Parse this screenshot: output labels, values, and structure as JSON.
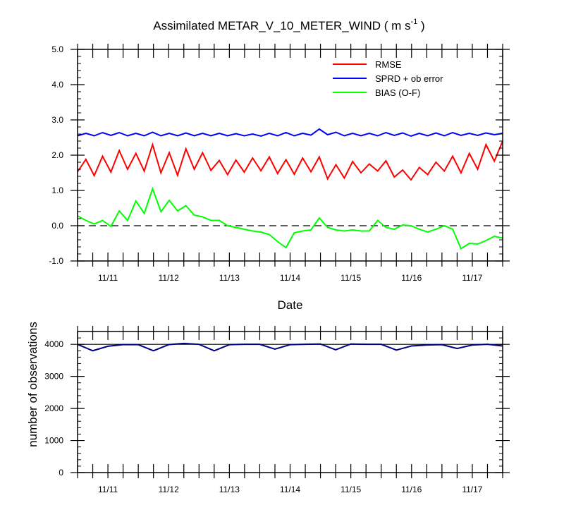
{
  "chart_data": [
    {
      "type": "line",
      "title": "Assimilated METAR_V_10_METER_WIND ( m s",
      "title_superscript": "-1",
      "title_end": " )",
      "xlabel": "Date",
      "ylabel": "",
      "ylim": [
        -1.0,
        5.0
      ],
      "y_ticks": [
        "-1.0",
        "0.0",
        "1.0",
        "2.0",
        "3.0",
        "4.0",
        "5.0"
      ],
      "xlim": [
        0,
        28
      ],
      "x_ticks": [
        {
          "pos": 2,
          "label": "11/11"
        },
        {
          "pos": 6,
          "label": "11/12"
        },
        {
          "pos": 10,
          "label": "11/13"
        },
        {
          "pos": 14,
          "label": "11/14"
        },
        {
          "pos": 18,
          "label": "11/15"
        },
        {
          "pos": 22,
          "label": "11/16"
        },
        {
          "pos": 26,
          "label": "11/17"
        }
      ],
      "zero_line": true,
      "legend_position": "top-right",
      "series": [
        {
          "name": "RMSE",
          "color": "#ff0000",
          "values": [
            1.53,
            1.88,
            1.42,
            1.97,
            1.52,
            2.13,
            1.6,
            2.05,
            1.55,
            2.3,
            1.5,
            2.07,
            1.43,
            2.18,
            1.6,
            2.07,
            1.57,
            1.85,
            1.45,
            1.86,
            1.52,
            1.92,
            1.56,
            1.95,
            1.48,
            1.87,
            1.46,
            1.92,
            1.53,
            1.95,
            1.33,
            1.73,
            1.35,
            1.82,
            1.5,
            1.75,
            1.55,
            1.84,
            1.38,
            1.58,
            1.3,
            1.65,
            1.45,
            1.8,
            1.55,
            1.97,
            1.5,
            2.05,
            1.6,
            2.3,
            1.83,
            2.4
          ]
        },
        {
          "name": "SPRD + ob error",
          "color": "#0000ff",
          "values": [
            2.55,
            2.62,
            2.55,
            2.64,
            2.56,
            2.64,
            2.55,
            2.62,
            2.55,
            2.65,
            2.55,
            2.62,
            2.55,
            2.63,
            2.55,
            2.62,
            2.55,
            2.62,
            2.55,
            2.61,
            2.55,
            2.6,
            2.54,
            2.62,
            2.55,
            2.64,
            2.55,
            2.62,
            2.57,
            2.74,
            2.58,
            2.65,
            2.55,
            2.62,
            2.55,
            2.62,
            2.55,
            2.64,
            2.56,
            2.63,
            2.54,
            2.62,
            2.55,
            2.63,
            2.55,
            2.64,
            2.56,
            2.62,
            2.56,
            2.63,
            2.58,
            2.62
          ]
        },
        {
          "name": "BIAS (O-F)",
          "color": "#00ff00",
          "values": [
            0.28,
            0.15,
            0.05,
            0.15,
            -0.02,
            0.42,
            0.15,
            0.7,
            0.35,
            1.05,
            0.4,
            0.72,
            0.42,
            0.57,
            0.3,
            0.25,
            0.15,
            0.15,
            0.0,
            -0.05,
            -0.1,
            -0.15,
            -0.18,
            -0.25,
            -0.45,
            -0.62,
            -0.2,
            -0.15,
            -0.12,
            0.22,
            -0.05,
            -0.12,
            -0.15,
            -0.12,
            -0.15,
            -0.15,
            0.15,
            -0.05,
            -0.1,
            0.02,
            0.0,
            -0.1,
            -0.18,
            -0.1,
            0.0,
            -0.1,
            -0.65,
            -0.5,
            -0.52,
            -0.42,
            -0.3,
            -0.35
          ]
        }
      ]
    },
    {
      "type": "line",
      "title": "",
      "xlabel": "",
      "ylabel": "number of observations",
      "ylim": [
        0,
        4400
      ],
      "y_ticks": [
        "0",
        "1000",
        "2000",
        "3000",
        "4000"
      ],
      "xlim": [
        0,
        28
      ],
      "x_ticks": [
        {
          "pos": 2,
          "label": "11/11"
        },
        {
          "pos": 6,
          "label": "11/12"
        },
        {
          "pos": 10,
          "label": "11/13"
        },
        {
          "pos": 14,
          "label": "11/14"
        },
        {
          "pos": 18,
          "label": "11/15"
        },
        {
          "pos": 22,
          "label": "11/16"
        },
        {
          "pos": 26,
          "label": "11/17"
        }
      ],
      "reference_line": 4000,
      "series": [
        {
          "color": "#000080",
          "values": [
            4000,
            3800,
            3940,
            3990,
            3990,
            3800,
            3990,
            4030,
            4000,
            3800,
            3990,
            4000,
            4000,
            3850,
            3990,
            4000,
            4010,
            3830,
            4010,
            4000,
            4000,
            3820,
            3950,
            3980,
            3990,
            3870,
            3980,
            4000,
            3950
          ]
        }
      ]
    }
  ]
}
